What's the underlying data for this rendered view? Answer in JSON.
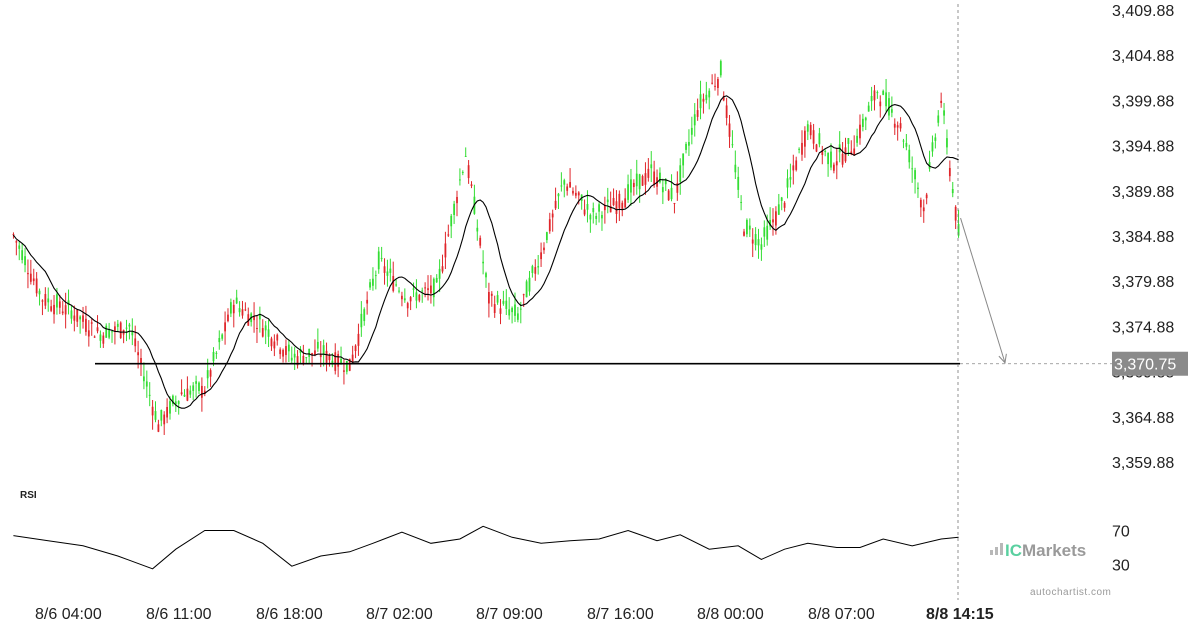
{
  "chart_data": {
    "type": "candlestick",
    "title": "",
    "symbol": "",
    "colors": {
      "up": "#33dd33",
      "down": "#e0262b",
      "ma": "#000000",
      "target": "#000000",
      "rsi": "#000000"
    },
    "ylim": [
      3359.88,
      3409.88
    ],
    "y_ticks": [
      "3,409.88",
      "3,404.88",
      "3,399.88",
      "3,394.88",
      "3,389.88",
      "3,384.88",
      "3,379.88",
      "3,374.88",
      "3,369.88",
      "3,364.88",
      "3,359.88"
    ],
    "x_ticks": [
      "8/6 04:00",
      "8/6 11:00",
      "8/6 18:00",
      "8/7 02:00",
      "8/7 09:00",
      "8/7 16:00",
      "8/8 00:00",
      "8/8 07:00"
    ],
    "current_time_label": "8/8 14:15",
    "target_level": 3370.75,
    "target_label": "3,370.75",
    "anchors": [
      [
        0,
        3385.0
      ],
      [
        10,
        3378.0
      ],
      [
        20,
        3376.5
      ],
      [
        30,
        3374.0
      ],
      [
        40,
        3375.0
      ],
      [
        50,
        3364.0
      ],
      [
        58,
        3367.5
      ],
      [
        66,
        3368.0
      ],
      [
        76,
        3377.5
      ],
      [
        86,
        3375.0
      ],
      [
        96,
        3371.5
      ],
      [
        106,
        3372.0
      ],
      [
        116,
        3370.5
      ],
      [
        126,
        3382.0
      ],
      [
        136,
        3378.0
      ],
      [
        146,
        3379.0
      ],
      [
        156,
        3394.0
      ],
      [
        164,
        3378.0
      ],
      [
        174,
        3376.0
      ],
      [
        182,
        3383.0
      ],
      [
        190,
        3391.0
      ],
      [
        200,
        3387.0
      ],
      [
        210,
        3389.0
      ],
      [
        220,
        3392.0
      ],
      [
        228,
        3389.0
      ],
      [
        236,
        3399.0
      ],
      [
        244,
        3403.0
      ],
      [
        252,
        3386.0
      ],
      [
        258,
        3384.0
      ],
      [
        266,
        3389.0
      ],
      [
        274,
        3397.0
      ],
      [
        282,
        3393.0
      ],
      [
        290,
        3395.0
      ],
      [
        298,
        3401.0
      ],
      [
        306,
        3397.0
      ],
      [
        314,
        3388.0
      ],
      [
        320,
        3400.0
      ],
      [
        326,
        3385.0
      ]
    ],
    "rsi": {
      "label": "RSI",
      "levels": [
        "70",
        "30"
      ],
      "points": [
        [
          0,
          64
        ],
        [
          12,
          58
        ],
        [
          24,
          52
        ],
        [
          36,
          40
        ],
        [
          48,
          25
        ],
        [
          56,
          48
        ],
        [
          66,
          70
        ],
        [
          76,
          70
        ],
        [
          86,
          55
        ],
        [
          96,
          28
        ],
        [
          106,
          40
        ],
        [
          116,
          45
        ],
        [
          124,
          55
        ],
        [
          134,
          68
        ],
        [
          144,
          55
        ],
        [
          154,
          60
        ],
        [
          162,
          75
        ],
        [
          172,
          62
        ],
        [
          182,
          55
        ],
        [
          192,
          58
        ],
        [
          202,
          60
        ],
        [
          212,
          70
        ],
        [
          222,
          58
        ],
        [
          230,
          65
        ],
        [
          240,
          48
        ],
        [
          250,
          52
        ],
        [
          258,
          36
        ],
        [
          266,
          48
        ],
        [
          274,
          55
        ],
        [
          284,
          50
        ],
        [
          292,
          50
        ],
        [
          300,
          60
        ],
        [
          310,
          52
        ],
        [
          320,
          60
        ],
        [
          326,
          62
        ]
      ]
    }
  },
  "brand": {
    "prefix": "IC",
    "name": "Markets"
  },
  "watermark": "autochartist.com"
}
